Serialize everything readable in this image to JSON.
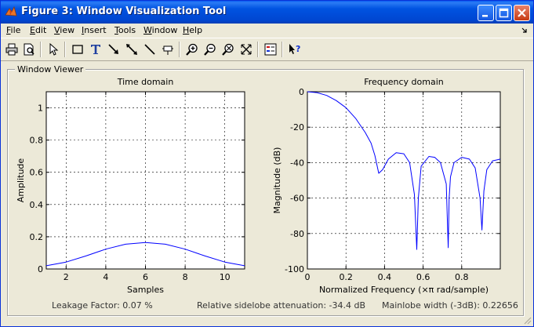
{
  "window": {
    "title": "Figure 3: Window Visualization Tool"
  },
  "menu": {
    "items": [
      {
        "label": "File",
        "accel": "F",
        "rest": "ile"
      },
      {
        "label": "Edit",
        "accel": "E",
        "rest": "dit"
      },
      {
        "label": "View",
        "accel": "V",
        "rest": "iew"
      },
      {
        "label": "Insert",
        "accel": "I",
        "rest": "nsert"
      },
      {
        "label": "Tools",
        "accel": "T",
        "rest": "ools"
      },
      {
        "label": "Window",
        "accel": "W",
        "rest": "indow"
      },
      {
        "label": "Help",
        "accel": "H",
        "rest": "elp"
      }
    ]
  },
  "toolbar": {
    "buttons": [
      "print-icon",
      "print-preview-icon",
      "select-arrow-icon",
      "insert-rectangle-icon",
      "insert-text-icon",
      "insert-arrow-icon",
      "insert-line-icon",
      "insert-line-icon",
      "pin-icon",
      "zoom-in-icon",
      "zoom-out-icon",
      "pan-icon",
      "data-cursor-icon",
      "legend-icon",
      "whats-this-help-icon"
    ]
  },
  "panel": {
    "title": "Window Viewer"
  },
  "status": {
    "leakage": "Leakage Factor: 0.07 %",
    "sidelobe": "Relative sidelobe attenuation: -34.4 dB",
    "mainlobe": "Mainlobe width (-3dB): 0.22656"
  },
  "chart_data": [
    {
      "type": "line",
      "title": "Time domain",
      "xlabel": "Samples",
      "ylabel": "Amplitude",
      "xlim": [
        1,
        11
      ],
      "ylim": [
        0,
        1.1
      ],
      "xticks": [
        2,
        4,
        6,
        8,
        10
      ],
      "yticks": [
        0,
        0.2,
        0.4,
        0.6,
        0.8,
        1
      ],
      "grid": true,
      "color": "#0000ff",
      "x": [
        1,
        2,
        3,
        4,
        5,
        6,
        7,
        8,
        9,
        10,
        11
      ],
      "y": [
        0.02,
        0.043,
        0.081,
        0.123,
        0.154,
        0.164,
        0.154,
        0.123,
        0.081,
        0.043,
        0.02
      ]
    },
    {
      "type": "line",
      "title": "Frequency domain",
      "xlabel": "Normalized Frequency  (×π rad/sample)",
      "ylabel": "Magnitude (dB)",
      "xlim": [
        0,
        1
      ],
      "ylim": [
        -100,
        0
      ],
      "xticks": [
        0,
        0.2,
        0.4,
        0.6,
        0.8
      ],
      "yticks": [
        0,
        -20,
        -40,
        -60,
        -80,
        -100
      ],
      "grid": true,
      "color": "#0000ff",
      "x": [
        0,
        0.05,
        0.1,
        0.15,
        0.2,
        0.25,
        0.3,
        0.33,
        0.35,
        0.37,
        0.39,
        0.42,
        0.46,
        0.5,
        0.53,
        0.555,
        0.567,
        0.575,
        0.59,
        0.63,
        0.66,
        0.69,
        0.72,
        0.73,
        0.735,
        0.742,
        0.76,
        0.8,
        0.84,
        0.87,
        0.895,
        0.905,
        0.915,
        0.93,
        0.96,
        1.0
      ],
      "y": [
        0,
        -0.5,
        -2.1,
        -5,
        -9,
        -15,
        -23,
        -29,
        -36,
        -46,
        -44,
        -38,
        -34.4,
        -35,
        -40,
        -58,
        -89,
        -60,
        -42,
        -36.5,
        -37,
        -40,
        -52,
        -88,
        -60,
        -48,
        -40,
        -37,
        -38,
        -43,
        -60,
        -78,
        -56,
        -44,
        -39,
        -38
      ]
    }
  ]
}
